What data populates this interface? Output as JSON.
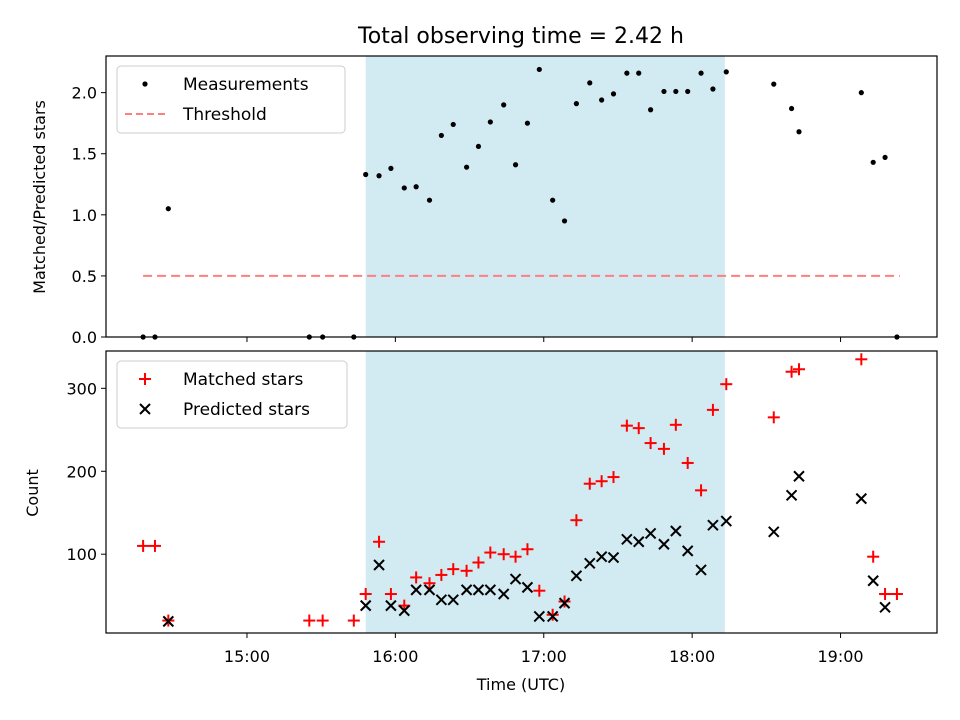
{
  "title": "Total observing time = 2.42 h",
  "colors": {
    "measurement": "#000000",
    "threshold": "#ff7f7f",
    "matched": "#ff0000",
    "predicted": "#000000",
    "shade": "#add8e6"
  },
  "chart_data": [
    {
      "type": "scatter",
      "panel": "top",
      "ylabel": "Matched/Predicted stars",
      "xlim": [
        14.05,
        19.65
      ],
      "ylim": [
        0,
        2.3
      ],
      "yticks": [
        0.0,
        0.5,
        1.0,
        1.5,
        2.0
      ],
      "ytick_labels": [
        "0.0",
        "0.5",
        "1.0",
        "1.5",
        "2.0"
      ],
      "shaded_interval": [
        15.8,
        18.22
      ],
      "legend": {
        "position": "top-left",
        "measurements_label": "Measurements",
        "threshold_label": "Threshold"
      },
      "threshold": {
        "value": 0.5,
        "x_range": [
          14.3,
          19.4
        ]
      },
      "series": [
        {
          "name": "Measurements",
          "x": [
            14.3,
            14.38,
            14.47,
            15.42,
            15.51,
            15.72,
            15.8,
            15.89,
            15.97,
            16.06,
            16.14,
            16.23,
            16.31,
            16.39,
            16.48,
            16.56,
            16.64,
            16.73,
            16.81,
            16.89,
            16.97,
            17.06,
            17.14,
            17.22,
            17.31,
            17.39,
            17.47,
            17.56,
            17.64,
            17.72,
            17.81,
            17.89,
            17.97,
            18.06,
            18.14,
            18.23,
            18.55,
            18.67,
            18.72,
            19.14,
            19.22,
            19.3,
            19.38
          ],
          "y": [
            0.0,
            0.0,
            1.05,
            0.0,
            0.0,
            0.0,
            1.33,
            1.32,
            1.38,
            1.22,
            1.23,
            1.12,
            1.65,
            1.74,
            1.39,
            1.56,
            1.76,
            1.9,
            1.41,
            1.75,
            2.19,
            1.12,
            0.95,
            1.91,
            2.08,
            1.94,
            1.99,
            2.16,
            2.16,
            1.86,
            2.01,
            2.01,
            2.01,
            2.16,
            2.03,
            2.17,
            2.07,
            1.87,
            1.68,
            2.0,
            1.43,
            1.47,
            0.0
          ]
        }
      ]
    },
    {
      "type": "scatter",
      "panel": "bottom",
      "xlabel": "Time (UTC)",
      "ylabel": "Count",
      "xlim": [
        14.05,
        19.65
      ],
      "ylim": [
        5,
        345
      ],
      "yticks": [
        100,
        200,
        300
      ],
      "ytick_labels": [
        "100",
        "200",
        "300"
      ],
      "xticks": [
        15,
        16,
        17,
        18,
        19
      ],
      "xtick_labels": [
        "15:00",
        "16:00",
        "17:00",
        "18:00",
        "19:00"
      ],
      "shaded_interval": [
        15.8,
        18.22
      ],
      "legend": {
        "position": "top-left",
        "matched_label": "Matched stars",
        "predicted_label": "Predicted stars"
      },
      "series": [
        {
          "name": "Matched stars",
          "x": [
            14.3,
            14.38,
            14.47,
            15.42,
            15.51,
            15.72,
            15.8,
            15.89,
            15.97,
            16.06,
            16.14,
            16.23,
            16.31,
            16.39,
            16.48,
            16.56,
            16.64,
            16.73,
            16.81,
            16.89,
            16.97,
            17.06,
            17.14,
            17.22,
            17.31,
            17.39,
            17.47,
            17.56,
            17.64,
            17.72,
            17.81,
            17.89,
            17.97,
            18.06,
            18.14,
            18.23,
            18.55,
            18.67,
            18.72,
            19.14,
            19.22,
            19.3,
            19.38
          ],
          "y": [
            110,
            110,
            20,
            20,
            20,
            20,
            52,
            115,
            52,
            38,
            72,
            65,
            75,
            82,
            80,
            90,
            102,
            100,
            97,
            106,
            56,
            27,
            43,
            141,
            185,
            188,
            193,
            255,
            252,
            234,
            227,
            256,
            210,
            177,
            274,
            305,
            265,
            320,
            323,
            335,
            97,
            52,
            52
          ]
        },
        {
          "name": "Predicted stars",
          "x": [
            14.47,
            15.8,
            15.89,
            15.97,
            16.06,
            16.14,
            16.23,
            16.31,
            16.39,
            16.48,
            16.56,
            16.64,
            16.73,
            16.81,
            16.89,
            16.97,
            17.06,
            17.14,
            17.22,
            17.31,
            17.39,
            17.47,
            17.56,
            17.64,
            17.72,
            17.81,
            17.89,
            17.97,
            18.06,
            18.14,
            18.23,
            18.55,
            18.67,
            18.72,
            19.14,
            19.22,
            19.3
          ],
          "y": [
            19,
            38,
            87,
            38,
            32,
            57,
            57,
            45,
            45,
            57,
            57,
            57,
            52,
            70,
            60,
            25,
            25,
            41,
            74,
            89,
            97,
            96,
            118,
            115,
            125,
            112,
            128,
            104,
            81,
            135,
            140,
            127,
            171,
            194,
            167,
            68,
            36
          ]
        }
      ]
    }
  ]
}
